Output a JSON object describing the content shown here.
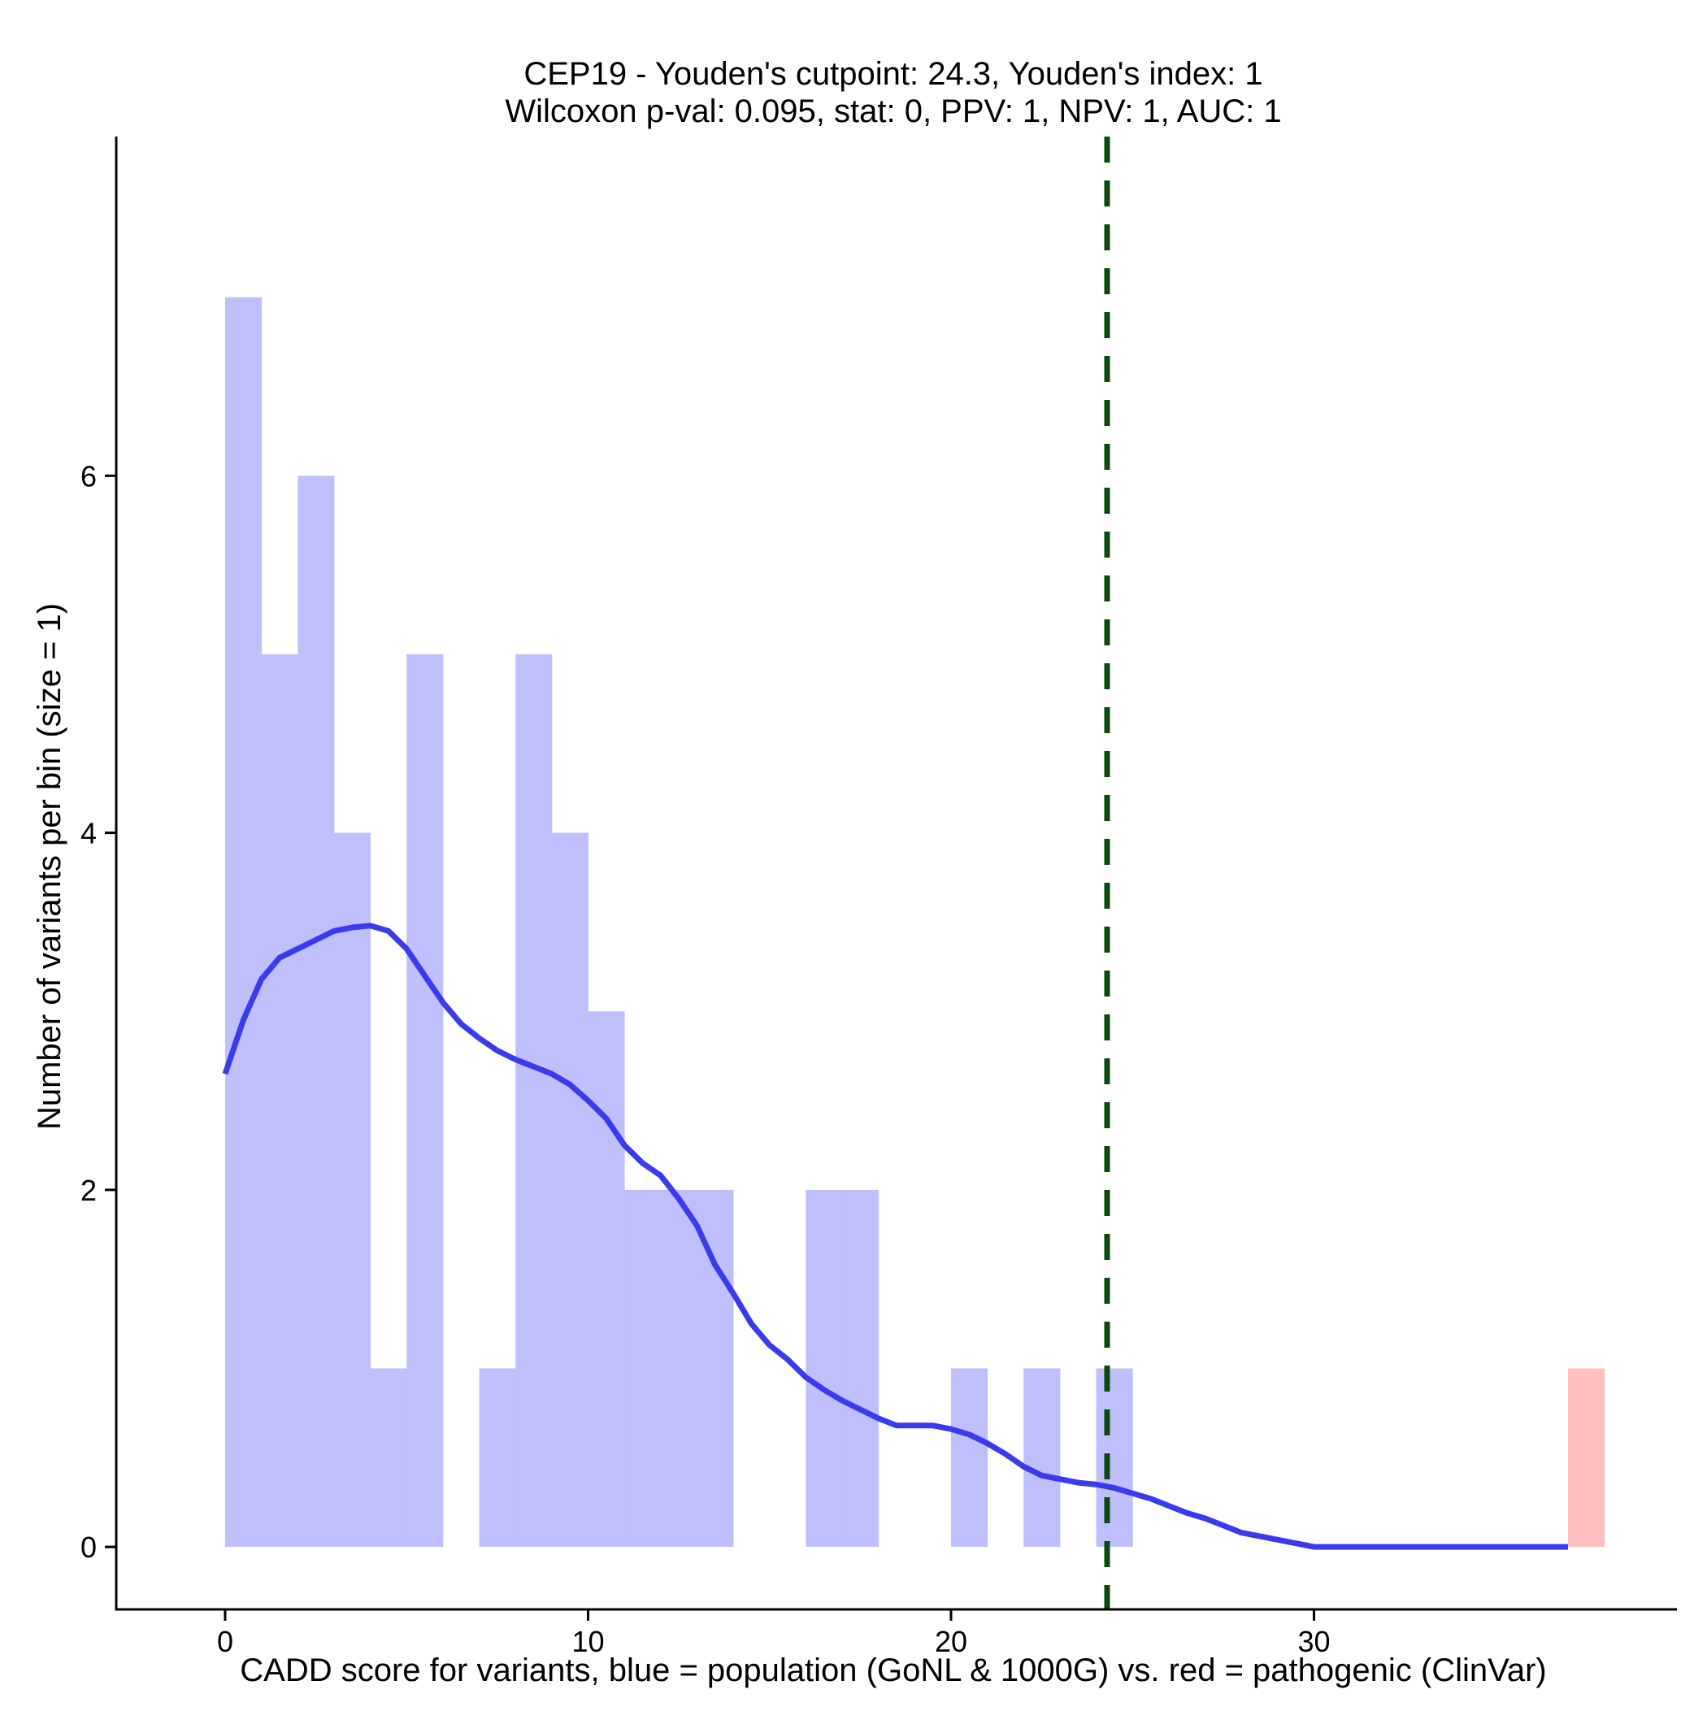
{
  "chart_data": {
    "type": "bar",
    "title": "CEP19 - Youden's cutpoint: 24.3, Youden's index: 1",
    "subtitle": "Wilcoxon p-val: 0.095, stat: 0, PPV: 1, NPV: 1, AUC: 1",
    "xlabel": "CADD score for variants, blue = population (GoNL & 1000G) vs. red = pathogenic (ClinVar)",
    "ylabel": "Number of variants per bin (size = 1)",
    "xlim": [
      -3,
      40
    ],
    "ylim": [
      -0.35,
      7.9
    ],
    "x_ticks": [
      0,
      10,
      20,
      30
    ],
    "y_ticks": [
      0,
      2,
      4,
      6
    ],
    "bin_size": 1,
    "grid": false,
    "legend": "none",
    "series": [
      {
        "color": "#bfbffe",
        "bins": [
          {
            "start": 0,
            "end": 1,
            "count": 7
          },
          {
            "start": 1,
            "end": 2,
            "count": 5
          },
          {
            "start": 2,
            "end": 3,
            "count": 6
          },
          {
            "start": 3,
            "end": 4,
            "count": 4
          },
          {
            "start": 4,
            "end": 5,
            "count": 1
          },
          {
            "start": 5,
            "end": 6,
            "count": 5
          },
          {
            "start": 7,
            "end": 8,
            "count": 1
          },
          {
            "start": 8,
            "end": 9,
            "count": 5
          },
          {
            "start": 9,
            "end": 10,
            "count": 4
          },
          {
            "start": 10,
            "end": 11,
            "count": 3
          },
          {
            "start": 11,
            "end": 12,
            "count": 2
          },
          {
            "start": 12,
            "end": 13,
            "count": 2
          },
          {
            "start": 13,
            "end": 14,
            "count": 2
          },
          {
            "start": 16,
            "end": 17,
            "count": 2
          },
          {
            "start": 17,
            "end": 18,
            "count": 2
          },
          {
            "start": 20,
            "end": 21,
            "count": 1
          },
          {
            "start": 22,
            "end": 23,
            "count": 1
          },
          {
            "start": 24,
            "end": 25,
            "count": 1
          }
        ]
      },
      {
        "color": "#ffbfbf",
        "bins": [
          {
            "start": 37,
            "end": 38,
            "count": 1
          }
        ]
      }
    ],
    "density_curve": {
      "color": "#3a3aee",
      "points": [
        [
          0,
          2.65
        ],
        [
          0.5,
          2.95
        ],
        [
          1,
          3.18
        ],
        [
          1.5,
          3.3
        ],
        [
          2,
          3.35
        ],
        [
          2.5,
          3.4
        ],
        [
          3,
          3.45
        ],
        [
          3.5,
          3.47
        ],
        [
          4,
          3.48
        ],
        [
          4.5,
          3.45
        ],
        [
          5,
          3.35
        ],
        [
          5.5,
          3.2
        ],
        [
          6,
          3.05
        ],
        [
          6.5,
          2.93
        ],
        [
          7,
          2.85
        ],
        [
          7.5,
          2.78
        ],
        [
          8,
          2.73
        ],
        [
          8.5,
          2.69
        ],
        [
          9,
          2.65
        ],
        [
          9.5,
          2.59
        ],
        [
          10,
          2.5
        ],
        [
          10.5,
          2.4
        ],
        [
          11,
          2.25
        ],
        [
          11.5,
          2.15
        ],
        [
          12,
          2.08
        ],
        [
          12.5,
          1.95
        ],
        [
          13,
          1.8
        ],
        [
          13.5,
          1.58
        ],
        [
          14,
          1.42
        ],
        [
          14.5,
          1.25
        ],
        [
          15,
          1.13
        ],
        [
          15.5,
          1.05
        ],
        [
          16,
          0.95
        ],
        [
          16.5,
          0.88
        ],
        [
          17,
          0.82
        ],
        [
          17.5,
          0.77
        ],
        [
          18,
          0.72
        ],
        [
          18.5,
          0.68
        ],
        [
          19,
          0.68
        ],
        [
          19.5,
          0.68
        ],
        [
          20,
          0.66
        ],
        [
          20.5,
          0.63
        ],
        [
          21,
          0.58
        ],
        [
          21.5,
          0.52
        ],
        [
          22,
          0.45
        ],
        [
          22.5,
          0.4
        ],
        [
          23,
          0.38
        ],
        [
          23.5,
          0.36
        ],
        [
          24,
          0.35
        ],
        [
          24.5,
          0.33
        ],
        [
          25,
          0.3
        ],
        [
          25.5,
          0.27
        ],
        [
          26,
          0.23
        ],
        [
          26.5,
          0.19
        ],
        [
          27,
          0.16
        ],
        [
          27.5,
          0.12
        ],
        [
          28,
          0.08
        ],
        [
          28.5,
          0.06
        ],
        [
          29,
          0.04
        ],
        [
          29.5,
          0.02
        ],
        [
          30,
          0
        ],
        [
          31,
          0
        ],
        [
          32,
          0
        ],
        [
          33,
          0
        ],
        [
          34,
          0
        ],
        [
          35,
          0
        ],
        [
          36,
          0
        ],
        [
          37,
          0
        ]
      ]
    },
    "cutpoint": {
      "x": 24.3,
      "color": "#0b4a0b",
      "style": "dashed"
    }
  }
}
